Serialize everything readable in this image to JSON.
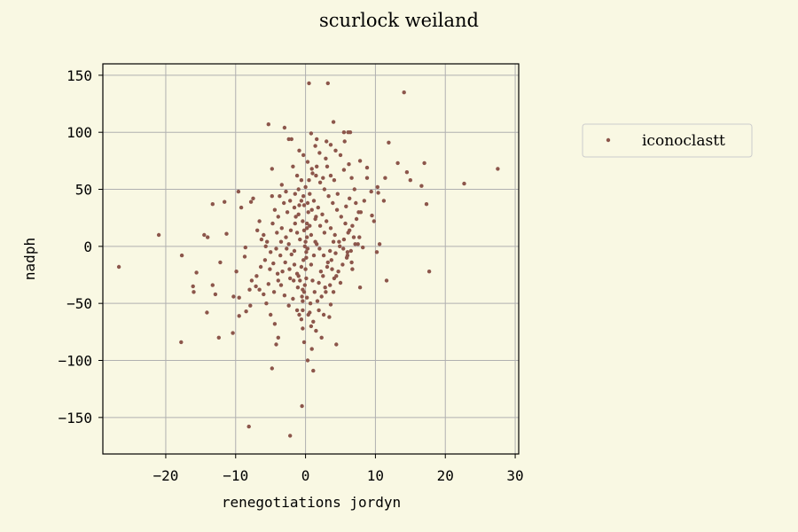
{
  "chart_data": {
    "type": "scatter",
    "title": "scurlock weiland",
    "xlabel": "renegotiations jordyn",
    "ylabel": "nadph",
    "xlim": [
      -29,
      30.5
    ],
    "ylim": [
      -182,
      160
    ],
    "xticks": [
      -20,
      -10,
      0,
      10,
      20,
      30
    ],
    "yticks": [
      -150,
      -100,
      -50,
      0,
      50,
      100,
      150
    ],
    "xtick_labels": [
      "−20",
      "−10",
      "0",
      "10",
      "20",
      "30"
    ],
    "ytick_labels": [
      "−150",
      "−100",
      "−50",
      "0",
      "50",
      "100",
      "150"
    ],
    "grid": true,
    "legend_position": "outside-right",
    "background_color": "#f9f8e3",
    "point_color": "#8c564b",
    "series": [
      {
        "name": "iconoclastt",
        "points": [
          [
            0.5,
            143
          ],
          [
            3.2,
            143
          ],
          [
            14.1,
            135
          ],
          [
            -5.3,
            107
          ],
          [
            4.0,
            109
          ],
          [
            -3.0,
            104
          ],
          [
            -2.4,
            94
          ],
          [
            -2.0,
            94
          ],
          [
            1.6,
            94
          ],
          [
            3.0,
            92
          ],
          [
            3.6,
            89
          ],
          [
            11.9,
            91
          ],
          [
            0.8,
            99
          ],
          [
            6.4,
            100
          ],
          [
            6.1,
            100
          ],
          [
            5.5,
            100
          ],
          [
            13.2,
            73
          ],
          [
            17.0,
            73
          ],
          [
            27.5,
            68
          ],
          [
            14.5,
            65
          ],
          [
            15.0,
            58
          ],
          [
            16.6,
            53
          ],
          [
            22.7,
            55
          ],
          [
            10.3,
            52
          ],
          [
            10.4,
            47
          ],
          [
            11.4,
            60
          ],
          [
            8.8,
            69
          ],
          [
            7.8,
            75
          ],
          [
            6.2,
            72
          ],
          [
            5.5,
            67
          ],
          [
            -4.8,
            68
          ],
          [
            17.3,
            37
          ],
          [
            11.2,
            40
          ],
          [
            9.5,
            27
          ],
          [
            9.8,
            22
          ],
          [
            10.6,
            2
          ],
          [
            10.2,
            -5
          ],
          [
            17.7,
            -22
          ],
          [
            11.6,
            -30
          ],
          [
            8.2,
            -1
          ],
          [
            6.0,
            -5
          ],
          [
            6.7,
            -20
          ],
          [
            7.8,
            -36
          ],
          [
            4.0,
            -40
          ],
          [
            4.4,
            -86
          ],
          [
            3.6,
            -51
          ],
          [
            -26.7,
            -18
          ],
          [
            -21.0,
            10
          ],
          [
            -17.7,
            -8
          ],
          [
            -17.8,
            -84
          ],
          [
            -15.6,
            -23
          ],
          [
            -16.1,
            -35
          ],
          [
            -16.0,
            -40
          ],
          [
            -14.5,
            10
          ],
          [
            -14.0,
            8
          ],
          [
            -13.3,
            -34
          ],
          [
            -12.9,
            -42
          ],
          [
            -13.3,
            37
          ],
          [
            -14.1,
            -58
          ],
          [
            -11.6,
            39
          ],
          [
            -11.3,
            11
          ],
          [
            -12.2,
            -14
          ],
          [
            -12.4,
            -80
          ],
          [
            -10.4,
            -76
          ],
          [
            -10.3,
            -44
          ],
          [
            -9.9,
            -22
          ],
          [
            -9.5,
            -61
          ],
          [
            -9.5,
            -45
          ],
          [
            -8.7,
            -9
          ],
          [
            -8.5,
            -57
          ],
          [
            -8.0,
            -38
          ],
          [
            -7.9,
            -52
          ],
          [
            -8.1,
            -158
          ],
          [
            -9.6,
            48
          ],
          [
            -9.2,
            34
          ],
          [
            -8.6,
            -1
          ],
          [
            -7.7,
            -30
          ],
          [
            -7.1,
            -35
          ],
          [
            -6.6,
            -38
          ],
          [
            -6.0,
            -42
          ],
          [
            -5.6,
            -50
          ],
          [
            -5.3,
            -33
          ],
          [
            -5.0,
            -60
          ],
          [
            -4.4,
            -68
          ],
          [
            -4.2,
            -86
          ],
          [
            -4.8,
            -107
          ],
          [
            -3.9,
            -80
          ],
          [
            -7.5,
            42
          ],
          [
            -7.8,
            39
          ],
          [
            -6.6,
            22
          ],
          [
            -6.0,
            10
          ],
          [
            -5.5,
            4
          ],
          [
            -5.0,
            -5
          ],
          [
            -4.6,
            -15
          ],
          [
            -4.0,
            -24
          ],
          [
            -3.5,
            -34
          ],
          [
            -3.0,
            -43
          ],
          [
            -2.4,
            -52
          ],
          [
            -1.8,
            -46
          ],
          [
            -1.2,
            -56
          ],
          [
            -0.6,
            -64
          ],
          [
            -0.2,
            -84
          ],
          [
            -4.8,
            44
          ],
          [
            -4.4,
            32
          ],
          [
            -3.9,
            26
          ],
          [
            -3.4,
            16
          ],
          [
            -2.8,
            8
          ],
          [
            -2.4,
            2
          ],
          [
            -2.0,
            -7
          ],
          [
            -1.6,
            -16
          ],
          [
            -1.2,
            -24
          ],
          [
            -0.8,
            -30
          ],
          [
            -0.4,
            -38
          ],
          [
            0.2,
            -45
          ],
          [
            0.6,
            -58
          ],
          [
            1.1,
            -66
          ],
          [
            1.5,
            -74
          ],
          [
            -3.4,
            54
          ],
          [
            -2.8,
            48
          ],
          [
            -2.2,
            40
          ],
          [
            -1.6,
            34
          ],
          [
            -1.0,
            28
          ],
          [
            -0.4,
            22
          ],
          [
            0.2,
            16
          ],
          [
            0.8,
            10
          ],
          [
            1.4,
            4
          ],
          [
            2.0,
            -2
          ],
          [
            2.6,
            -8
          ],
          [
            3.2,
            -14
          ],
          [
            3.8,
            -20
          ],
          [
            4.4,
            -26
          ],
          [
            5.0,
            -32
          ],
          [
            -1.8,
            70
          ],
          [
            -1.2,
            62
          ],
          [
            -0.6,
            58
          ],
          [
            0.0,
            52
          ],
          [
            0.6,
            46
          ],
          [
            1.2,
            40
          ],
          [
            1.8,
            34
          ],
          [
            2.4,
            28
          ],
          [
            3.0,
            22
          ],
          [
            3.6,
            16
          ],
          [
            4.2,
            10
          ],
          [
            4.8,
            4
          ],
          [
            5.4,
            -2
          ],
          [
            6.0,
            -8
          ],
          [
            6.6,
            -14
          ],
          [
            -0.9,
            84
          ],
          [
            -0.3,
            80
          ],
          [
            0.3,
            74
          ],
          [
            0.9,
            68
          ],
          [
            1.5,
            62
          ],
          [
            2.1,
            56
          ],
          [
            2.7,
            50
          ],
          [
            3.3,
            44
          ],
          [
            3.9,
            38
          ],
          [
            4.5,
            32
          ],
          [
            5.1,
            26
          ],
          [
            5.7,
            20
          ],
          [
            6.3,
            14
          ],
          [
            6.9,
            8
          ],
          [
            7.5,
            2
          ],
          [
            0.0,
            -20
          ],
          [
            0.1,
            -10
          ],
          [
            -0.1,
            0
          ],
          [
            0.2,
            8
          ],
          [
            -0.2,
            14
          ],
          [
            0.1,
            -28
          ],
          [
            -0.1,
            -34
          ],
          [
            0.3,
            -2
          ],
          [
            -0.3,
            -12
          ],
          [
            0.2,
            20
          ],
          [
            -0.2,
            -40
          ],
          [
            0.4,
            30
          ],
          [
            -0.4,
            -48
          ],
          [
            0.1,
            -5
          ],
          [
            0.0,
            4
          ],
          [
            0.8,
            -16
          ],
          [
            1.2,
            -8
          ],
          [
            -0.8,
            6
          ],
          [
            -1.2,
            12
          ],
          [
            1.0,
            -30
          ],
          [
            -1.0,
            -26
          ],
          [
            1.6,
            2
          ],
          [
            -1.6,
            -4
          ],
          [
            0.6,
            18
          ],
          [
            -0.6,
            -18
          ],
          [
            1.4,
            24
          ],
          [
            -1.4,
            26
          ],
          [
            2.2,
            -22
          ],
          [
            -2.2,
            -28
          ],
          [
            2.8,
            -36
          ],
          [
            -0.5,
            -140
          ],
          [
            -2.2,
            -166
          ],
          [
            0.3,
            -100
          ],
          [
            1.1,
            -109
          ],
          [
            0.9,
            -90
          ],
          [
            -0.4,
            -72
          ],
          [
            1.9,
            -56
          ],
          [
            2.6,
            -60
          ],
          [
            3.4,
            -62
          ],
          [
            2.3,
            -80
          ],
          [
            8.4,
            40
          ],
          [
            7.6,
            30
          ],
          [
            7.0,
            50
          ],
          [
            6.6,
            60
          ],
          [
            8.8,
            60
          ],
          [
            9.4,
            48
          ],
          [
            7.2,
            38
          ],
          [
            6.3,
            42
          ],
          [
            5.8,
            35
          ],
          [
            4.6,
            46
          ],
          [
            4.1,
            58
          ],
          [
            3.6,
            62
          ],
          [
            2.9,
            77
          ],
          [
            2.0,
            82
          ],
          [
            1.4,
            88
          ],
          [
            -2.6,
            30
          ],
          [
            -3.1,
            38
          ],
          [
            -3.7,
            44
          ],
          [
            -1.5,
            46
          ],
          [
            -1.0,
            50
          ],
          [
            -0.2,
            36
          ],
          [
            -0.6,
            40
          ],
          [
            0.5,
            58
          ],
          [
            1.0,
            64
          ],
          [
            1.6,
            70
          ],
          [
            2.5,
            60
          ],
          [
            3.1,
            70
          ],
          [
            4.3,
            84
          ],
          [
            5.0,
            80
          ],
          [
            5.6,
            92
          ],
          [
            -5.8,
            -12
          ],
          [
            -6.4,
            -18
          ],
          [
            -7.0,
            -26
          ],
          [
            -4.2,
            -2
          ],
          [
            -3.6,
            -8
          ],
          [
            -2.9,
            -14
          ],
          [
            -2.3,
            -20
          ],
          [
            -1.7,
            -30
          ],
          [
            -1.1,
            -36
          ],
          [
            -0.5,
            -44
          ],
          [
            0.7,
            -50
          ],
          [
            1.3,
            -40
          ],
          [
            1.9,
            -32
          ],
          [
            2.5,
            -26
          ],
          [
            3.1,
            -18
          ],
          [
            3.7,
            -12
          ],
          [
            4.3,
            -6
          ],
          [
            4.9,
            0
          ],
          [
            5.5,
            6
          ],
          [
            6.1,
            12
          ],
          [
            6.7,
            18
          ],
          [
            7.3,
            24
          ],
          [
            7.9,
            30
          ],
          [
            4.0,
            4
          ],
          [
            3.5,
            -4
          ],
          [
            2.7,
            12
          ],
          [
            2.1,
            18
          ],
          [
            1.5,
            26
          ],
          [
            0.9,
            32
          ],
          [
            0.3,
            38
          ],
          [
            -0.3,
            44
          ],
          [
            -0.9,
            36
          ],
          [
            -1.5,
            20
          ],
          [
            -2.1,
            14
          ],
          [
            -2.7,
            -2
          ],
          [
            -3.3,
            -22
          ],
          [
            -3.9,
            -30
          ],
          [
            -4.5,
            -40
          ],
          [
            -5.1,
            -20
          ],
          [
            -5.7,
            0
          ],
          [
            -6.3,
            6
          ],
          [
            -6.9,
            14
          ],
          [
            -4.7,
            20
          ],
          [
            -4.1,
            12
          ],
          [
            -3.5,
            4
          ],
          [
            0.4,
            -60
          ],
          [
            0.8,
            -70
          ],
          [
            -0.4,
            -56
          ],
          [
            -0.9,
            -60
          ],
          [
            1.7,
            -48
          ],
          [
            2.3,
            -44
          ],
          [
            2.9,
            -40
          ],
          [
            3.5,
            -34
          ],
          [
            4.1,
            -28
          ],
          [
            4.7,
            -22
          ],
          [
            5.3,
            -16
          ],
          [
            5.9,
            -10
          ],
          [
            6.5,
            -4
          ],
          [
            7.1,
            2
          ],
          [
            7.7,
            8
          ]
        ]
      }
    ]
  }
}
